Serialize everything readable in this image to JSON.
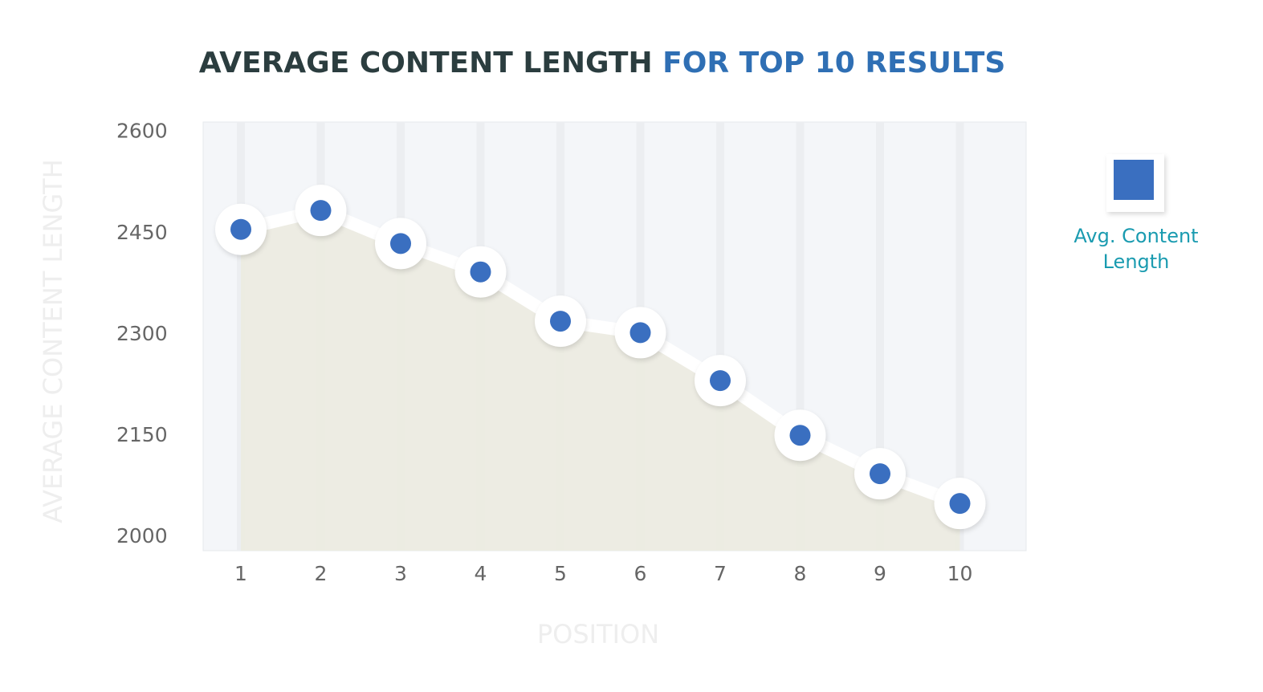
{
  "chart_data": {
    "type": "line",
    "title_parts": [
      "AVERAGE CONTENT LENGTH",
      "FOR TOP 10 RESULTS"
    ],
    "title_colors": [
      "#2b3d3f",
      "#2f6fb4"
    ],
    "x_label": "POSITION",
    "y_label": "AVERAGE CONTENT LENGTH",
    "categories": [
      "1",
      "2",
      "3",
      "4",
      "5",
      "6",
      "7",
      "8",
      "9",
      "10"
    ],
    "series": [
      {
        "name": "Avg. Content Length",
        "color": "#3a6fc0",
        "values": [
          2456,
          2484,
          2435,
          2393,
          2320,
          2303,
          2232,
          2151,
          2094,
          2050
        ]
      }
    ],
    "ylim": [
      1980,
      2615
    ],
    "yticks": [
      2000,
      2150,
      2300,
      2450,
      2600
    ],
    "grid": true,
    "legend": "right"
  }
}
